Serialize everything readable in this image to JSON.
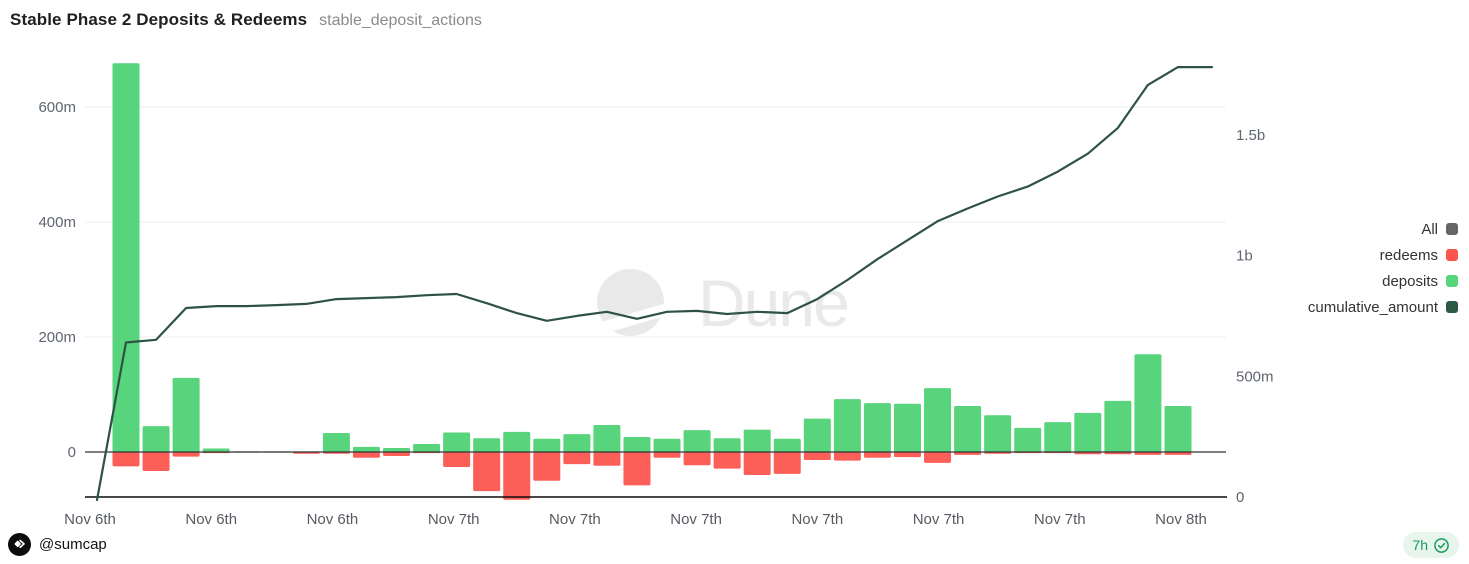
{
  "header": {
    "title": "Stable Phase 2 Deposits & Redeems",
    "query_name": "stable_deposit_actions"
  },
  "watermark": {
    "text": "Dune"
  },
  "legend": {
    "items": [
      {
        "label": "All",
        "color": "#666666"
      },
      {
        "label": "redeems",
        "color": "#f8564d"
      },
      {
        "label": "deposits",
        "color": "#57d47c"
      },
      {
        "label": "cumulative_amount",
        "color": "#2d5a45"
      }
    ]
  },
  "footer": {
    "author": "@sumcap",
    "age_label": "7h",
    "age_color": "#169a5c"
  },
  "chart_data": {
    "type": "bar",
    "title": "Stable Phase 2 Deposits & Redeems",
    "x_axis_labels": [
      "Nov 6th",
      "Nov 6th",
      "Nov 6th",
      "Nov 7th",
      "Nov 7th",
      "Nov 7th",
      "Nov 7th",
      "Nov 7th",
      "Nov 7th",
      "Nov 8th"
    ],
    "left_axis": {
      "tick_labels": [
        "600m",
        "400m",
        "200m",
        "0"
      ],
      "tick_values_m": [
        600,
        400,
        200,
        0
      ],
      "range_m": [
        -78,
        692
      ]
    },
    "right_axis": {
      "tick_labels": [
        "1.5b",
        "1b",
        "500m",
        "0"
      ],
      "tick_values_m": [
        1500,
        1000,
        500,
        0
      ],
      "range_m": [
        0,
        1840
      ]
    },
    "grid": true,
    "legend_position": "right",
    "series": [
      {
        "name": "deposits",
        "type": "bar",
        "axis": "left",
        "color": "#57d47c",
        "values_m": [
          676,
          45,
          129,
          6,
          1,
          1,
          1,
          33,
          9,
          7,
          14,
          34,
          24,
          35,
          23,
          31,
          47,
          26,
          23,
          38,
          24,
          39,
          23,
          58,
          92,
          85,
          84,
          111,
          80,
          64,
          42,
          52,
          68,
          89,
          170,
          80
        ]
      },
      {
        "name": "redeems",
        "type": "bar",
        "axis": "left",
        "color": "#fb5f58",
        "values_m": [
          -25,
          -33,
          -8,
          -2,
          -1,
          -1,
          -3,
          -3,
          -10,
          -7,
          -2,
          -26,
          -68,
          -83,
          -50,
          -21,
          -24,
          -58,
          -10,
          -23,
          -29,
          -40,
          -38,
          -14,
          -15,
          -10,
          -9,
          -19,
          -5,
          -3,
          -2,
          -2,
          -4,
          -4,
          -5,
          -5
        ]
      },
      {
        "name": "cumulative_amount",
        "type": "line",
        "axis": "right",
        "color": "#2e5245",
        "values_m": [
          640,
          651,
          783,
          791,
          791,
          795,
          800,
          820,
          824,
          828,
          836,
          841,
          803,
          762,
          730,
          750,
          767,
          738,
          767,
          771,
          758,
          767,
          762,
          820,
          899,
          985,
          1064,
          1142,
          1195,
          1245,
          1286,
          1348,
          1422,
          1529,
          1707,
          1781
        ]
      }
    ]
  }
}
